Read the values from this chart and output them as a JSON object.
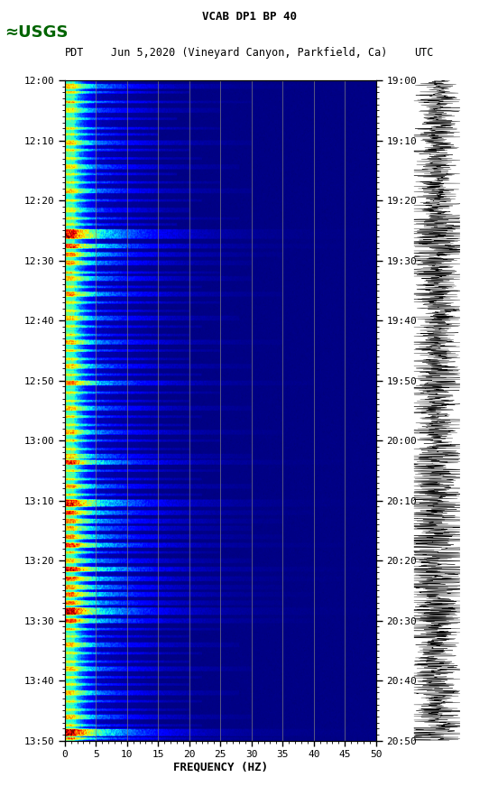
{
  "title_line1": "VCAB DP1 BP 40",
  "title_line2_left": "PDT",
  "title_line2_mid": "Jun 5,2020 (Vineyard Canyon, Parkfield, Ca)",
  "title_line2_right": "UTC",
  "xlabel": "FREQUENCY (HZ)",
  "left_times": [
    "12:00",
    "12:10",
    "12:20",
    "12:30",
    "12:40",
    "12:50",
    "13:00",
    "13:10",
    "13:20",
    "13:30",
    "13:40",
    "13:50"
  ],
  "right_times": [
    "19:00",
    "19:10",
    "19:20",
    "19:30",
    "19:40",
    "19:50",
    "20:00",
    "20:10",
    "20:20",
    "20:30",
    "20:40",
    "20:50"
  ],
  "freq_min": 0,
  "freq_max": 50,
  "freq_ticks": [
    0,
    5,
    10,
    15,
    20,
    25,
    30,
    35,
    40,
    45,
    50
  ],
  "freq_gridlines": [
    5,
    10,
    15,
    20,
    25,
    30,
    35,
    40,
    45
  ],
  "background_color": "#ffffff",
  "fig_width": 5.52,
  "fig_height": 8.92,
  "usgs_color": "#006400"
}
